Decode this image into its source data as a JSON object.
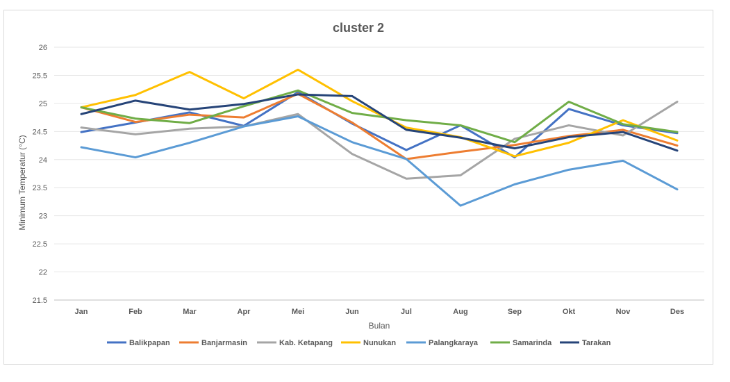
{
  "chart_data": {
    "type": "line",
    "title": "cluster 2",
    "xlabel": "Bulan",
    "ylabel": "Minimum Temperatur (°C)",
    "ylim": [
      21.5,
      26
    ],
    "yticks": [
      "21.5",
      "22",
      "22.5",
      "23",
      "23.5",
      "24",
      "24.5",
      "25",
      "25.5",
      "26"
    ],
    "grid": "horizontal",
    "legend": "bottom",
    "categories": [
      "Jan",
      "Feb",
      "Mar",
      "Apr",
      "Mei",
      "Jun",
      "Jul",
      "Aug",
      "Sep",
      "Okt",
      "Nov",
      "Des"
    ],
    "series": [
      {
        "name": "Balikpapan",
        "color": "#4472c4",
        "values": [
          24.49,
          24.66,
          24.84,
          24.6,
          25.2,
          24.64,
          24.17,
          24.61,
          24.04,
          24.9,
          24.61,
          24.47
        ]
      },
      {
        "name": "Banjarmasin",
        "color": "#ed7d31",
        "values": [
          24.93,
          24.67,
          24.8,
          24.75,
          25.17,
          24.66,
          24.01,
          24.14,
          24.26,
          24.42,
          24.53,
          24.25
        ]
      },
      {
        "name": "Kab. Ketapang",
        "color": "#a5a5a5",
        "values": [
          24.57,
          24.45,
          24.55,
          24.59,
          24.81,
          24.1,
          23.66,
          23.72,
          24.37,
          24.61,
          24.43,
          25.03
        ]
      },
      {
        "name": "Nunukan",
        "color": "#ffc000",
        "values": [
          24.93,
          25.15,
          25.56,
          25.09,
          25.6,
          25.04,
          24.57,
          24.4,
          24.06,
          24.3,
          24.7,
          24.34
        ]
      },
      {
        "name": "Palangkaraya",
        "color": "#5b9bd5",
        "values": [
          24.22,
          24.04,
          24.3,
          24.59,
          24.77,
          24.31,
          24.01,
          23.18,
          23.56,
          23.82,
          23.98,
          23.47
        ]
      },
      {
        "name": "Samarinda",
        "color": "#70ad47",
        "values": [
          24.93,
          24.73,
          24.65,
          24.95,
          25.23,
          24.83,
          24.7,
          24.61,
          24.31,
          25.03,
          24.63,
          24.49
        ]
      },
      {
        "name": "Tarakan",
        "color": "#264478",
        "values": [
          24.81,
          25.05,
          24.89,
          24.99,
          25.16,
          25.13,
          24.53,
          24.39,
          24.2,
          24.4,
          24.49,
          24.16
        ]
      }
    ]
  }
}
